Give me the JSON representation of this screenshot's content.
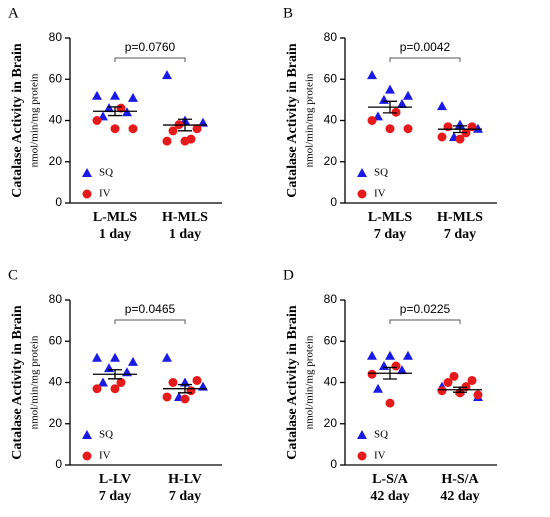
{
  "chart_data": [
    {
      "type": "dot",
      "panel": "A",
      "ylabel": "Catalase Activity in Brain",
      "ylabel_sub": "nmol/min/mg protein",
      "categories": [
        [
          "L-MLS",
          "1 day"
        ],
        [
          "H-MLS",
          "1 day"
        ]
      ],
      "ylim": [
        0,
        80
      ],
      "yticks": [
        0,
        20,
        40,
        60,
        80
      ],
      "series": [
        {
          "name": "SQ",
          "color": "#1a1ae6",
          "marker": "triangle",
          "values": [
            [
              52,
              52,
              51,
              46,
              44,
              42
            ],
            [
              62,
              40,
              39
            ]
          ]
        },
        {
          "name": "IV",
          "color": "#e61a1a",
          "marker": "circle",
          "values": [
            [
              46,
              40,
              36,
              36
            ],
            [
              38,
              36,
              35,
              31,
              30,
              30
            ]
          ]
        }
      ],
      "mean": [
        44.5,
        37.8
      ],
      "sem": [
        2.1,
        2.8
      ],
      "annotation": "p=0.0760"
    },
    {
      "type": "dot",
      "panel": "B",
      "ylabel": "Catalase Activity in Brain",
      "ylabel_sub": "nmol/min/mg protein",
      "categories": [
        [
          "L-MLS",
          "7 day"
        ],
        [
          "H-MLS",
          "7 day"
        ]
      ],
      "ylim": [
        0,
        80
      ],
      "yticks": [
        0,
        20,
        40,
        60,
        80
      ],
      "series": [
        {
          "name": "SQ",
          "color": "#1a1ae6",
          "marker": "triangle",
          "values": [
            [
              62,
              55,
              52,
              50,
              48,
              42
            ],
            [
              47,
              38,
              36,
              32
            ]
          ]
        },
        {
          "name": "IV",
          "color": "#e61a1a",
          "marker": "circle",
          "values": [
            [
              44,
              40,
              36,
              36
            ],
            [
              37,
              37,
              34,
              32,
              31
            ]
          ]
        }
      ],
      "mean": [
        46.5,
        35.8
      ],
      "sem": [
        2.8,
        1.6
      ],
      "annotation": "p=0.0042"
    },
    {
      "type": "dot",
      "panel": "C",
      "ylabel": "Catalase Activity in Brain",
      "ylabel_sub": "nmol/min/mg protein",
      "categories": [
        [
          "L-LV",
          "7 day"
        ],
        [
          "H-LV",
          "7 day"
        ]
      ],
      "ylim": [
        0,
        80
      ],
      "yticks": [
        0,
        20,
        40,
        60,
        80
      ],
      "series": [
        {
          "name": "SQ",
          "color": "#1a1ae6",
          "marker": "triangle",
          "values": [
            [
              52,
              52,
              50,
              47,
              45,
              40
            ],
            [
              52,
              40,
              38,
              33
            ]
          ]
        },
        {
          "name": "IV",
          "color": "#e61a1a",
          "marker": "circle",
          "values": [
            [
              40,
              37,
              37
            ],
            [
              41,
              40,
              36,
              33,
              32
            ]
          ]
        }
      ],
      "mean": [
        44,
        37
      ],
      "sem": [
        2.2,
        2
      ],
      "annotation": "p=0.0465"
    },
    {
      "type": "dot",
      "panel": "D",
      "ylabel": "Catalase Activity in Brain",
      "ylabel_sub": "nmol/min/mg protein",
      "categories": [
        [
          "L-S/A",
          "42 day"
        ],
        [
          "H-S/A",
          "42 day"
        ]
      ],
      "ylim": [
        0,
        80
      ],
      "yticks": [
        0,
        20,
        40,
        60,
        80
      ],
      "series": [
        {
          "name": "SQ",
          "color": "#1a1ae6",
          "marker": "triangle",
          "values": [
            [
              53,
              53,
              53,
              48,
              46,
              37
            ],
            [
              38,
              36,
              33
            ]
          ]
        },
        {
          "name": "IV",
          "color": "#e61a1a",
          "marker": "circle",
          "values": [
            [
              48,
              44,
              30
            ],
            [
              43,
              41,
              40,
              38,
              36,
              35,
              34
            ]
          ]
        }
      ],
      "mean": [
        44.5,
        36.5
      ],
      "sem": [
        2.8,
        1.2
      ],
      "annotation": "p=0.0225"
    }
  ]
}
